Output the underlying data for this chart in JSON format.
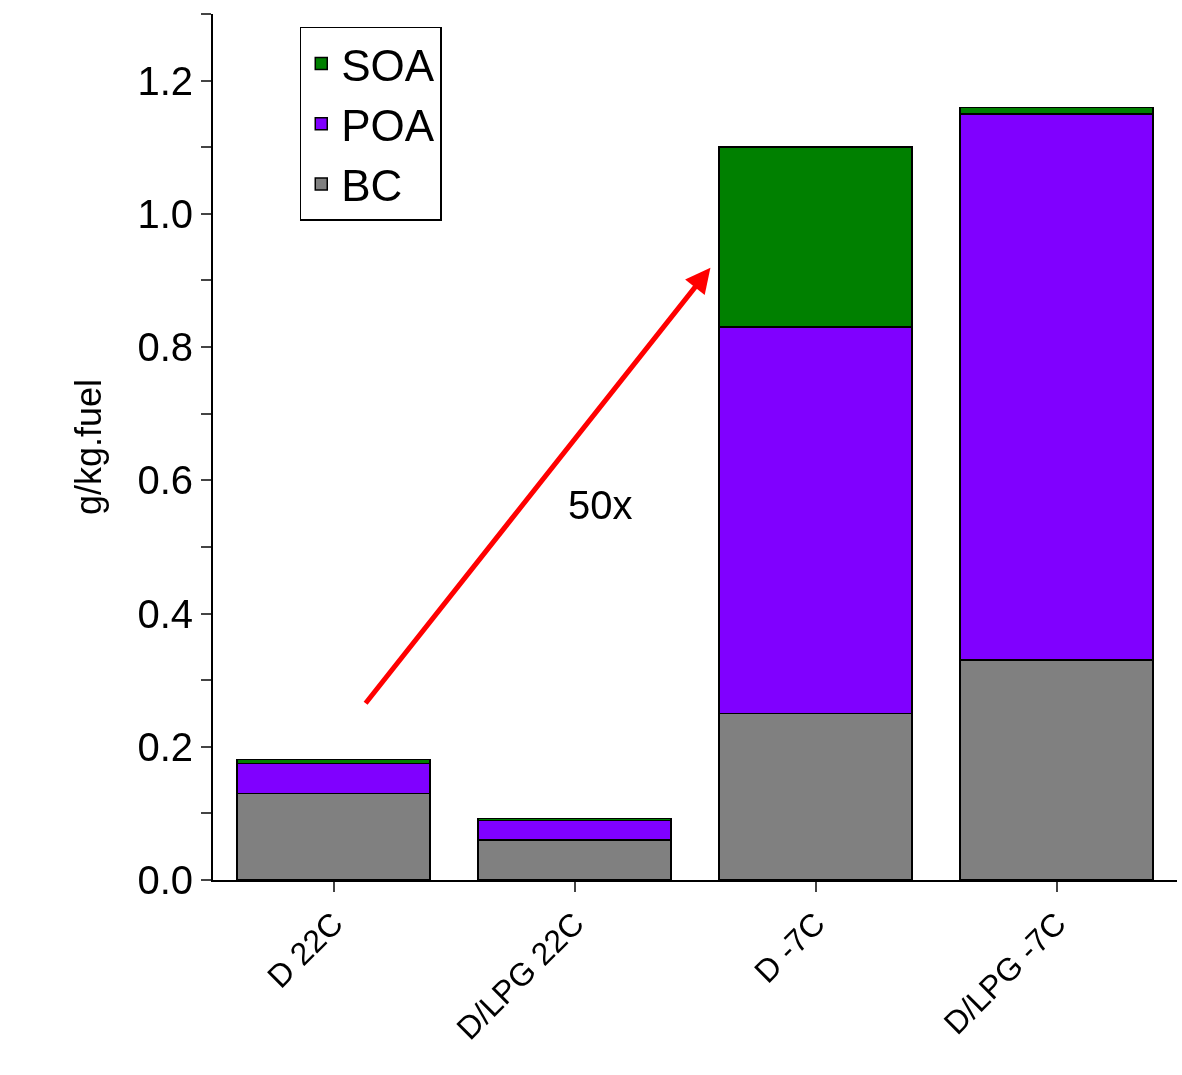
{
  "chart_data": {
    "type": "bar",
    "stacked": true,
    "ylabel": "g/kg.fuel",
    "categories": [
      "D 22C",
      "D/LPG 22C",
      "D -7C",
      "D/LPG -7C"
    ],
    "series": [
      {
        "name": "BC",
        "color": "#808080",
        "values": [
          0.13,
          0.06,
          0.25,
          0.33
        ]
      },
      {
        "name": "POA",
        "color": "#8000ff",
        "values": [
          0.045,
          0.029,
          0.58,
          0.82
        ]
      },
      {
        "name": "SOA",
        "color": "#008000",
        "values": [
          0.006,
          0.003,
          0.27,
          0.01
        ]
      }
    ],
    "ylim": [
      0,
      1.3
    ],
    "yticks": [
      {
        "value": 0.0,
        "label": "0.0"
      },
      {
        "value": 0.1,
        "label": null
      },
      {
        "value": 0.2,
        "label": "0.2"
      },
      {
        "value": 0.3,
        "label": null
      },
      {
        "value": 0.4,
        "label": "0.4"
      },
      {
        "value": 0.5,
        "label": null
      },
      {
        "value": 0.6,
        "label": "0.6"
      },
      {
        "value": 0.7,
        "label": null
      },
      {
        "value": 0.8,
        "label": "0.8"
      },
      {
        "value": 0.9,
        "label": null
      },
      {
        "value": 1.0,
        "label": "1.0"
      },
      {
        "value": 1.1,
        "label": null
      },
      {
        "value": 1.2,
        "label": "1.2"
      },
      {
        "value": 1.3,
        "label": null
      }
    ],
    "annotations": [
      "50x"
    ],
    "legend": "top left"
  }
}
